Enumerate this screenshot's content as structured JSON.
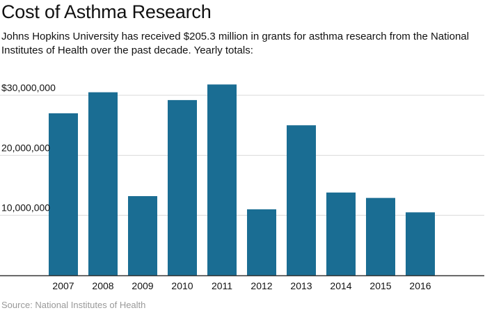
{
  "title": "Cost of Asthma Research",
  "subtitle": "Johns Hopkins University has received $205.3 million in grants for asthma research from the National Institutes of Health over the past decade. Yearly totals:",
  "source": "Source: National Institutes of Health",
  "colors": {
    "bar": "#1a6d93",
    "grid": "#d9d9d9",
    "axis": "#333333"
  },
  "chart_data": {
    "type": "bar",
    "categories": [
      "2007",
      "2008",
      "2009",
      "2010",
      "2011",
      "2012",
      "2013",
      "2014",
      "2015",
      "2016"
    ],
    "values": [
      27000000,
      30500000,
      13200000,
      29200000,
      31800000,
      11000000,
      25000000,
      13800000,
      12900000,
      10500000
    ],
    "ylim": [
      0,
      30000000
    ],
    "yticks": [
      {
        "value": 10000000,
        "label": "10,000,000"
      },
      {
        "value": 20000000,
        "label": "20,000,000"
      },
      {
        "value": 30000000,
        "label": "$30,000,000"
      }
    ],
    "grid": true,
    "legend": "none"
  }
}
